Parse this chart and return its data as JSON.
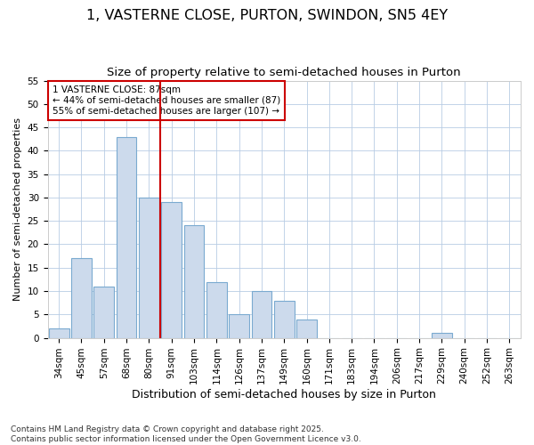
{
  "title_line1": "1, VASTERNE CLOSE, PURTON, SWINDON, SN5 4EY",
  "title_line2": "Size of property relative to semi-detached houses in Purton",
  "xlabel": "Distribution of semi-detached houses by size in Purton",
  "ylabel": "Number of semi-detached properties",
  "categories": [
    "34sqm",
    "45sqm",
    "57sqm",
    "68sqm",
    "80sqm",
    "91sqm",
    "103sqm",
    "114sqm",
    "126sqm",
    "137sqm",
    "149sqm",
    "160sqm",
    "171sqm",
    "183sqm",
    "194sqm",
    "206sqm",
    "217sqm",
    "229sqm",
    "240sqm",
    "252sqm",
    "263sqm"
  ],
  "values": [
    2,
    17,
    11,
    43,
    30,
    29,
    24,
    12,
    5,
    10,
    8,
    4,
    0,
    0,
    0,
    0,
    0,
    1,
    0,
    0,
    0
  ],
  "bar_color": "#ccdaec",
  "bar_edge_color": "#7aaad0",
  "property_line_index": 5,
  "property_line_color": "#cc0000",
  "annotation_text": "1 VASTERNE CLOSE: 87sqm\n← 44% of semi-detached houses are smaller (87)\n55% of semi-detached houses are larger (107) →",
  "annotation_box_color": "#ffffff",
  "annotation_box_edge": "#cc0000",
  "ylim": [
    0,
    55
  ],
  "yticks": [
    0,
    5,
    10,
    15,
    20,
    25,
    30,
    35,
    40,
    45,
    50,
    55
  ],
  "grid_color": "#b8cce4",
  "background_color": "#ffffff",
  "plot_bg_color": "#ffffff",
  "footer_text": "Contains HM Land Registry data © Crown copyright and database right 2025.\nContains public sector information licensed under the Open Government Licence v3.0.",
  "title_fontsize": 11.5,
  "subtitle_fontsize": 9.5,
  "xlabel_fontsize": 9,
  "ylabel_fontsize": 8,
  "tick_fontsize": 7.5,
  "annotation_fontsize": 7.5,
  "footer_fontsize": 6.5
}
